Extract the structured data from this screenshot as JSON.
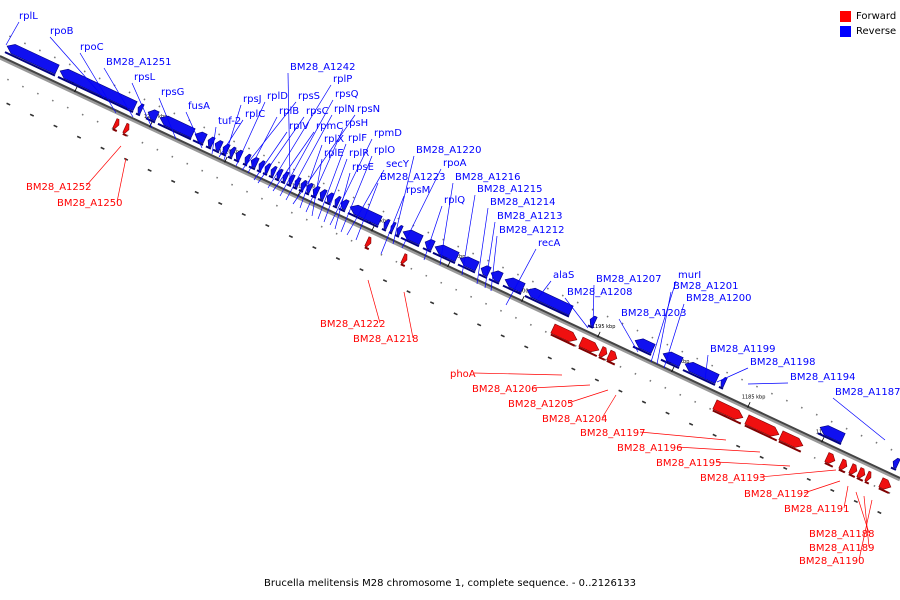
{
  "legend": {
    "forward": {
      "label": "Forward",
      "color": "#ff0000"
    },
    "reverse": {
      "label": "Reverse",
      "color": "#0000ff"
    }
  },
  "caption": "Brucella melitensis M28 chromosome 1, complete sequence. - 0..2126133",
  "ticks": [
    "1230 kbp",
    "1225 kbp",
    "1220 kbp",
    "1215 kbp",
    "1210 kbp",
    "1205 kbp",
    "1200 kbp",
    "1195 kbp",
    "1190 kbp",
    "1185 kbp",
    "1180 kbp"
  ],
  "reverse_genes": [
    "rplL",
    "rpoB",
    "rpoC",
    "BM28_A1251",
    "rpsL",
    "rpsG",
    "fusA",
    "tuf-2",
    "rpsJ",
    "rplD",
    "rplC",
    "rplB",
    "rpsS",
    "rplV",
    "rpsC",
    "rplP",
    "rpmC",
    "rpsQ",
    "rplN",
    "rpsN",
    "rplX",
    "rpsH",
    "rplE",
    "rplF",
    "rplR",
    "rpmD",
    "rpsE",
    "rplO",
    "secY",
    "BM28_A1242",
    "BM28_A1223",
    "rpsM",
    "BM28_A1220",
    "rpoA",
    "rplQ",
    "BM28_A1216",
    "BM28_A1215",
    "BM28_A1214",
    "BM28_A1213",
    "BM28_A1212",
    "recA",
    "alaS",
    "BM28_A1208",
    "BM28_A1207",
    "BM28_A1203",
    "murI",
    "BM28_A1201",
    "BM28_A1200",
    "BM28_A1199",
    "BM28_A1198",
    "BM28_A1194",
    "BM28_A1187"
  ],
  "forward_genes": [
    "BM28_A1252",
    "BM28_A1250",
    "BM28_A1222",
    "BM28_A1218",
    "phoA",
    "BM28_A1206",
    "BM28_A1205",
    "BM28_A1204",
    "BM28_A1197",
    "BM28_A1196",
    "BM28_A1195",
    "BM28_A1193",
    "BM28_A1192",
    "BM28_A1191",
    "BM28_A1188",
    "BM28_A1189",
    "BM28_A1190"
  ]
}
